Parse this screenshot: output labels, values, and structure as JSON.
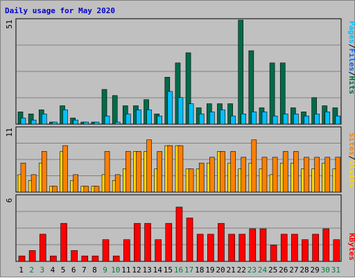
{
  "title": "Daily usage for May 2020",
  "colors": {
    "hits": "#006b4a",
    "files": "#0066ff",
    "pages": "#00c0ff",
    "visits": "#ffd700",
    "sites": "#ff8000",
    "kbytes": "#ff0000",
    "weekend": "#007f3f",
    "weekday": "#000000"
  },
  "panels": {
    "top": {
      "ymax_label": "51",
      "legend": [
        "Pages",
        "Files",
        "Hits"
      ],
      "separator": "/"
    },
    "middle": {
      "ymax_label": "11",
      "legend": [
        "Sites",
        "Visits"
      ],
      "separator": "/"
    },
    "bottom": {
      "ymax_label": "6",
      "legend": [
        "KBytes"
      ]
    }
  },
  "chart_data": [
    {
      "type": "bar",
      "title": "Daily usage for May 2020",
      "panel": "top",
      "categories": [
        "1",
        "2",
        "3",
        "4",
        "5",
        "6",
        "7",
        "8",
        "9",
        "10",
        "11",
        "12",
        "13",
        "14",
        "15",
        "16",
        "17",
        "18",
        "19",
        "20",
        "21",
        "22",
        "23",
        "24",
        "25",
        "26",
        "27",
        "28",
        "29",
        "30",
        "31"
      ],
      "ylim": [
        0,
        51
      ],
      "series": [
        {
          "name": "Hits",
          "values": [
            6,
            5,
            7,
            1,
            9,
            3,
            1,
            1,
            17,
            14,
            9,
            9,
            12,
            5,
            23,
            30,
            35,
            8,
            10,
            10,
            10,
            51,
            36,
            8,
            30,
            30,
            8,
            6,
            13,
            9,
            8
          ]
        },
        {
          "name": "Files",
          "values": [
            3,
            2,
            5,
            1,
            7,
            2,
            1,
            1,
            4,
            1,
            5,
            7,
            7,
            4,
            16,
            13,
            10,
            5,
            6,
            7,
            4,
            5,
            6,
            6,
            4,
            5,
            5,
            4,
            5,
            6,
            4
          ]
        },
        {
          "name": "Pages",
          "values": [
            3,
            2,
            5,
            1,
            7,
            2,
            1,
            1,
            4,
            1,
            5,
            7,
            7,
            4,
            16,
            13,
            10,
            5,
            6,
            7,
            4,
            5,
            6,
            6,
            4,
            5,
            5,
            4,
            5,
            6,
            4
          ]
        }
      ],
      "grid": true
    },
    {
      "type": "bar",
      "panel": "middle",
      "categories": [
        "1",
        "2",
        "3",
        "4",
        "5",
        "6",
        "7",
        "8",
        "9",
        "10",
        "11",
        "12",
        "13",
        "14",
        "15",
        "16",
        "17",
        "18",
        "19",
        "20",
        "21",
        "22",
        "23",
        "24",
        "25",
        "26",
        "27",
        "28",
        "29",
        "30",
        "31"
      ],
      "ylim": [
        0,
        11
      ],
      "series": [
        {
          "name": "Visits",
          "values": [
            3,
            2,
            5,
            1,
            7,
            2,
            1,
            1,
            3,
            2,
            4,
            7,
            7,
            4,
            8,
            8,
            4,
            4,
            5,
            7,
            5,
            4,
            5,
            4,
            3,
            5,
            5,
            4,
            4,
            5,
            4
          ]
        },
        {
          "name": "Sites",
          "values": [
            5,
            3,
            7,
            1,
            8,
            3,
            1,
            1,
            7,
            3,
            7,
            7,
            9,
            7,
            8,
            8,
            4,
            5,
            6,
            7,
            7,
            6,
            9,
            6,
            6,
            7,
            7,
            6,
            6,
            6,
            6
          ]
        }
      ],
      "grid": true
    },
    {
      "type": "bar",
      "panel": "bottom",
      "categories": [
        "1",
        "2",
        "3",
        "4",
        "5",
        "6",
        "7",
        "8",
        "9",
        "10",
        "11",
        "12",
        "13",
        "14",
        "15",
        "16",
        "17",
        "18",
        "19",
        "20",
        "21",
        "22",
        "23",
        "24",
        "25",
        "26",
        "27",
        "28",
        "29",
        "30",
        "31"
      ],
      "ylim": [
        0,
        6
      ],
      "series": [
        {
          "name": "KBytes",
          "values": [
            0.5,
            1,
            2.5,
            0.5,
            3.5,
            1,
            0.5,
            0.5,
            2,
            0.5,
            2,
            3.5,
            3.5,
            2,
            3.5,
            5,
            4,
            2.5,
            2.5,
            3.5,
            2.5,
            2.5,
            3,
            3,
            1.5,
            2.5,
            2.5,
            2,
            2.5,
            3,
            2
          ]
        }
      ],
      "grid": true
    }
  ],
  "weekend_days": [
    "2",
    "3",
    "9",
    "10",
    "16",
    "17",
    "23",
    "24",
    "30",
    "31"
  ]
}
